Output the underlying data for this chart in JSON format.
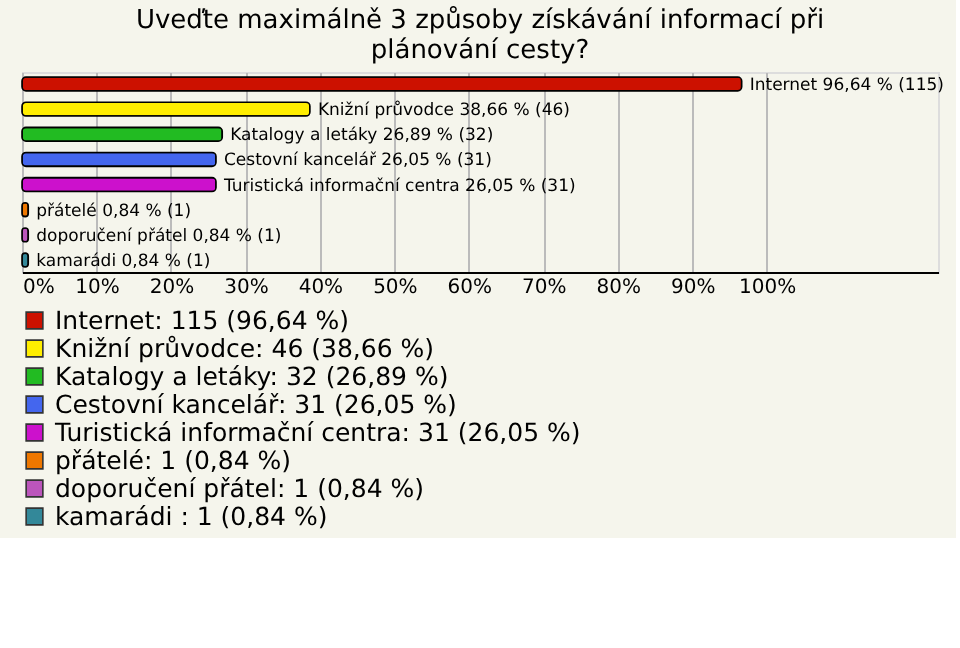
{
  "chart_data": {
    "type": "bar",
    "orientation": "horizontal",
    "title": "Uveďte maximálně 3 způsoby získávání informací při plánování cesty?",
    "categories": [
      null,
      null,
      null,
      null,
      null,
      null,
      null,
      null
    ],
    "series": [
      {
        "name": "Internet: 115 (96,64 %)",
        "color": "#cc1100",
        "values": [
          96.64,
          null,
          null,
          null,
          null,
          null,
          null,
          null
        ],
        "value_labels": [
          "Internet 96,64 % (115)",
          null,
          null,
          null,
          null,
          null,
          null,
          null
        ]
      },
      {
        "name": "Knižní průvodce: 46 (38,66 %)",
        "color": "#ffee00",
        "values": [
          null,
          38.66,
          null,
          null,
          null,
          null,
          null,
          null
        ],
        "value_labels": [
          null,
          "Knižní průvodce 38,66 % (46)",
          null,
          null,
          null,
          null,
          null,
          null
        ]
      },
      {
        "name": "Katalogy a letáky: 32 (26,89 %)",
        "color": "#22bb22",
        "values": [
          null,
          null,
          26.89,
          null,
          null,
          null,
          null,
          null
        ],
        "value_labels": [
          null,
          null,
          "Katalogy a letáky 26,89 % (32)",
          null,
          null,
          null,
          null,
          null
        ]
      },
      {
        "name": "Cestovní kancelář: 31 (26,05 %)",
        "color": "#4466ee",
        "values": [
          null,
          null,
          null,
          26.05,
          null,
          null,
          null,
          null
        ],
        "value_labels": [
          null,
          null,
          null,
          "Cestovní kancelář 26,05 % (31)",
          null,
          null,
          null,
          null
        ]
      },
      {
        "name": "Turistická informační centra: 31 (26,05 %)",
        "color": "#cc11cc",
        "values": [
          null,
          null,
          null,
          null,
          26.05,
          null,
          null,
          null
        ],
        "value_labels": [
          null,
          null,
          null,
          null,
          "Turistická informační centra 26,05 % (31)",
          null,
          null,
          null
        ]
      },
      {
        "name": "přátelé: 1 (0,84 %)",
        "color": "#ee7700",
        "values": [
          null,
          null,
          null,
          null,
          null,
          0.84,
          null,
          null
        ],
        "value_labels": [
          null,
          null,
          null,
          null,
          null,
          "přátelé 0,84 % (1)",
          null,
          null
        ]
      },
      {
        "name": "doporučení přátel: 1 (0,84 %)",
        "color": "#bb55bb",
        "values": [
          null,
          null,
          null,
          null,
          null,
          null,
          0.84,
          null
        ],
        "value_labels": [
          null,
          null,
          null,
          null,
          null,
          null,
          "doporučení přátel 0,84 % (1)",
          null
        ]
      },
      {
        "name": "kamarádi : 1 (0,84 %)",
        "color": "#338899",
        "values": [
          null,
          null,
          null,
          null,
          null,
          null,
          null,
          0.84
        ],
        "value_labels": [
          null,
          null,
          null,
          null,
          null,
          null,
          null,
          "kamarádi  0,84 % (1)"
        ]
      }
    ],
    "xlim": [
      0,
      123
    ],
    "xticks": [
      {
        "value": 0,
        "label": "0%"
      },
      {
        "value": 10,
        "label": "10%"
      },
      {
        "value": 20,
        "label": "20%"
      },
      {
        "value": 30,
        "label": "30%"
      },
      {
        "value": 40,
        "label": "40%"
      },
      {
        "value": 50,
        "label": "50%"
      },
      {
        "value": 60,
        "label": "60%"
      },
      {
        "value": 70,
        "label": "70%"
      },
      {
        "value": 80,
        "label": "80%"
      },
      {
        "value": 90,
        "label": "90%"
      },
      {
        "value": 100,
        "label": "100%"
      }
    ],
    "grid": "x",
    "legend": "bottom",
    "tick_labels": "x"
  }
}
